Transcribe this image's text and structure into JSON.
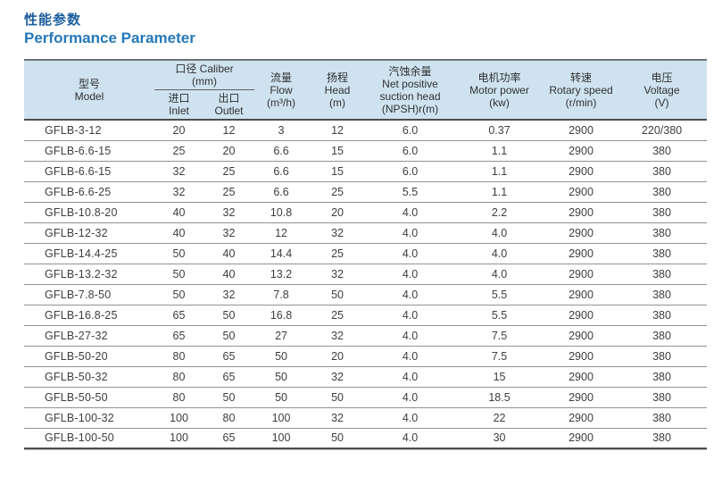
{
  "page": {
    "title_zh": "性能参数",
    "title_en": "Performance Parameter"
  },
  "colors": {
    "title_zh": "#1a5c9e",
    "title_en": "#2478b9",
    "header_bg": "#cfe2ef",
    "row_separator": "#8f9296",
    "heavy_border": "#4c4d4f"
  },
  "table": {
    "columns": {
      "model": {
        "zh": "型号",
        "en": "Model"
      },
      "caliber": {
        "label": "口径 Caliber",
        "unit": "(mm)"
      },
      "inlet": {
        "zh": "进口",
        "en": "Inlet"
      },
      "outlet": {
        "zh": "出口",
        "en": "Outlet"
      },
      "flow": {
        "zh": "流量",
        "en": "Flow",
        "unit": "(m³/h)"
      },
      "head": {
        "zh": "扬程",
        "en": "Head",
        "unit": "(m)"
      },
      "npsh": {
        "zh": "汽蚀余量",
        "en1": "Net positive",
        "en2": "suction head",
        "unit": "(NPSH)r(m)"
      },
      "motor": {
        "zh": "电机功率",
        "en": "Motor power",
        "unit": "(kw)"
      },
      "speed": {
        "zh": "转速",
        "en": "Rotary speed",
        "unit": "(r/min)"
      },
      "voltage": {
        "zh": "电压",
        "en": "Voltage",
        "unit": "(V)"
      }
    },
    "rows": [
      [
        "GFLB-3-12",
        "20",
        "12",
        "3",
        "12",
        "6.0",
        "0.37",
        "2900",
        "220/380"
      ],
      [
        "GFLB-6.6-15",
        "25",
        "20",
        "6.6",
        "15",
        "6.0",
        "1.1",
        "2900",
        "380"
      ],
      [
        "GFLB-6.6-15",
        "32",
        "25",
        "6.6",
        "15",
        "6.0",
        "1.1",
        "2900",
        "380"
      ],
      [
        "GFLB-6.6-25",
        "32",
        "25",
        "6.6",
        "25",
        "5.5",
        "1.1",
        "2900",
        "380"
      ],
      [
        "GFLB-10.8-20",
        "40",
        "32",
        "10.8",
        "20",
        "4.0",
        "2.2",
        "2900",
        "380"
      ],
      [
        "GFLB-12-32",
        "40",
        "32",
        "12",
        "32",
        "4.0",
        "4.0",
        "2900",
        "380"
      ],
      [
        "GFLB-14.4-25",
        "50",
        "40",
        "14.4",
        "25",
        "4.0",
        "4.0",
        "2900",
        "380"
      ],
      [
        "GFLB-13.2-32",
        "50",
        "40",
        "13.2",
        "32",
        "4.0",
        "4.0",
        "2900",
        "380"
      ],
      [
        "GFLB-7.8-50",
        "50",
        "32",
        "7.8",
        "50",
        "4.0",
        "5.5",
        "2900",
        "380"
      ],
      [
        "GFLB-16.8-25",
        "65",
        "50",
        "16.8",
        "25",
        "4.0",
        "5.5",
        "2900",
        "380"
      ],
      [
        "GFLB-27-32",
        "65",
        "50",
        "27",
        "32",
        "4.0",
        "7.5",
        "2900",
        "380"
      ],
      [
        "GFLB-50-20",
        "80",
        "65",
        "50",
        "20",
        "4.0",
        "7.5",
        "2900",
        "380"
      ],
      [
        "GFLB-50-32",
        "80",
        "65",
        "50",
        "32",
        "4.0",
        "15",
        "2900",
        "380"
      ],
      [
        "GFLB-50-50",
        "80",
        "50",
        "50",
        "50",
        "4.0",
        "18.5",
        "2900",
        "380"
      ],
      [
        "GFLB-100-32",
        "100",
        "80",
        "100",
        "32",
        "4.0",
        "22",
        "2900",
        "380"
      ],
      [
        "GFLB-100-50",
        "100",
        "65",
        "100",
        "50",
        "4.0",
        "30",
        "2900",
        "380"
      ]
    ]
  }
}
